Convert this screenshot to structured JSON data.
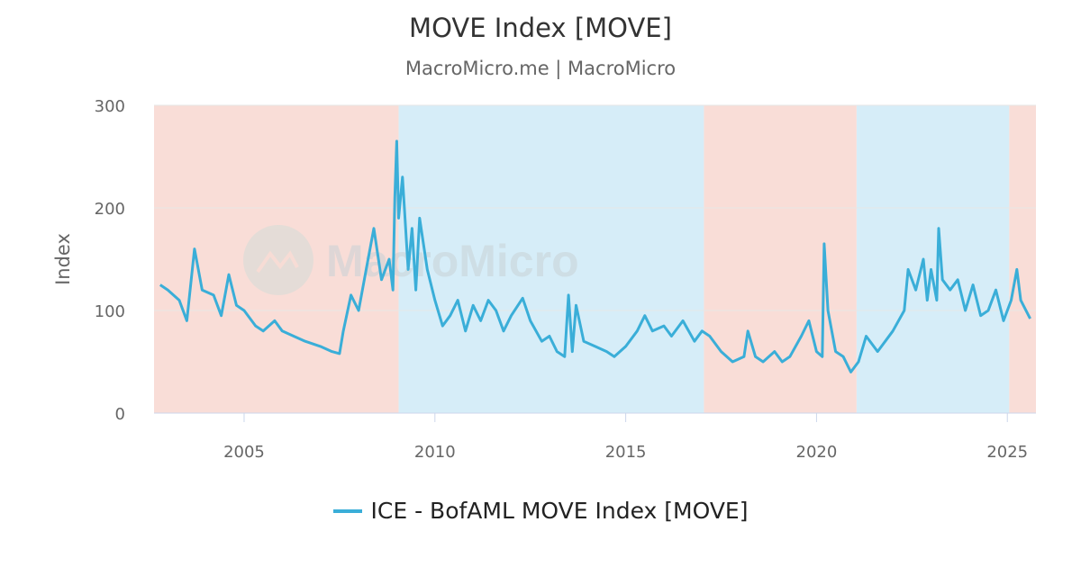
{
  "chart_data": {
    "type": "line",
    "title": "MOVE Index [MOVE]",
    "subtitle": "MacroMicro.me | MacroMicro",
    "ylabel": "Index",
    "xlabel": "",
    "ylim": [
      0,
      300
    ],
    "xlim": [
      2002.64,
      2025.75
    ],
    "yticks": [
      "0",
      "100",
      "200",
      "300"
    ],
    "xticks": [
      "2005",
      "2010",
      "2015",
      "2020",
      "2025"
    ],
    "grid": true,
    "legend_position": "bottom",
    "watermark": "MacroMicro",
    "background_bands": [
      {
        "from": 2002.64,
        "to": 2009.05,
        "color": "#f9ddd7"
      },
      {
        "from": 2009.05,
        "to": 2017.05,
        "color": "#d6edf8"
      },
      {
        "from": 2017.05,
        "to": 2021.05,
        "color": "#f9ddd7"
      },
      {
        "from": 2021.05,
        "to": 2025.05,
        "color": "#d6edf8"
      },
      {
        "from": 2025.05,
        "to": 2025.75,
        "color": "#f9ddd7"
      }
    ],
    "series": [
      {
        "name": "ICE - BofAML MOVE Index [MOVE]",
        "color": "#3aaed8",
        "x": [
          2002.8,
          2003.0,
          2003.3,
          2003.5,
          2003.7,
          2003.9,
          2004.2,
          2004.4,
          2004.6,
          2004.8,
          2005.0,
          2005.3,
          2005.5,
          2005.8,
          2006.0,
          2006.3,
          2006.6,
          2007.0,
          2007.3,
          2007.5,
          2007.6,
          2007.8,
          2008.0,
          2008.2,
          2008.4,
          2008.6,
          2008.8,
          2008.9,
          2008.95,
          2009.0,
          2009.05,
          2009.15,
          2009.3,
          2009.4,
          2009.5,
          2009.6,
          2009.8,
          2010.0,
          2010.2,
          2010.4,
          2010.6,
          2010.8,
          2011.0,
          2011.2,
          2011.4,
          2011.6,
          2011.8,
          2012.0,
          2012.3,
          2012.5,
          2012.8,
          2013.0,
          2013.2,
          2013.4,
          2013.5,
          2013.6,
          2013.7,
          2013.9,
          2014.2,
          2014.5,
          2014.7,
          2015.0,
          2015.3,
          2015.5,
          2015.7,
          2016.0,
          2016.2,
          2016.5,
          2016.8,
          2017.0,
          2017.2,
          2017.5,
          2017.8,
          2018.1,
          2018.2,
          2018.4,
          2018.6,
          2018.9,
          2019.1,
          2019.3,
          2019.6,
          2019.8,
          2020.0,
          2020.15,
          2020.2,
          2020.3,
          2020.5,
          2020.7,
          2020.9,
          2021.1,
          2021.3,
          2021.6,
          2021.8,
          2022.0,
          2022.3,
          2022.4,
          2022.6,
          2022.8,
          2022.9,
          2023.0,
          2023.15,
          2023.2,
          2023.3,
          2023.5,
          2023.7,
          2023.9,
          2024.1,
          2024.3,
          2024.5,
          2024.7,
          2024.9,
          2025.1,
          2025.25,
          2025.35,
          2025.6
        ],
        "values": [
          125,
          120,
          110,
          90,
          160,
          120,
          115,
          95,
          135,
          105,
          100,
          85,
          80,
          90,
          80,
          75,
          70,
          65,
          60,
          58,
          80,
          115,
          100,
          140,
          180,
          130,
          150,
          120,
          210,
          265,
          190,
          230,
          140,
          180,
          120,
          190,
          140,
          110,
          85,
          95,
          110,
          80,
          105,
          90,
          110,
          100,
          80,
          95,
          112,
          90,
          70,
          75,
          60,
          55,
          115,
          60,
          105,
          70,
          65,
          60,
          55,
          65,
          80,
          95,
          80,
          85,
          75,
          90,
          70,
          80,
          75,
          60,
          50,
          55,
          80,
          55,
          50,
          60,
          50,
          55,
          75,
          90,
          60,
          55,
          165,
          100,
          60,
          55,
          40,
          50,
          75,
          60,
          70,
          80,
          100,
          140,
          120,
          150,
          110,
          140,
          110,
          180,
          130,
          120,
          130,
          100,
          125,
          95,
          100,
          120,
          90,
          110,
          140,
          110,
          92
        ]
      }
    ]
  }
}
